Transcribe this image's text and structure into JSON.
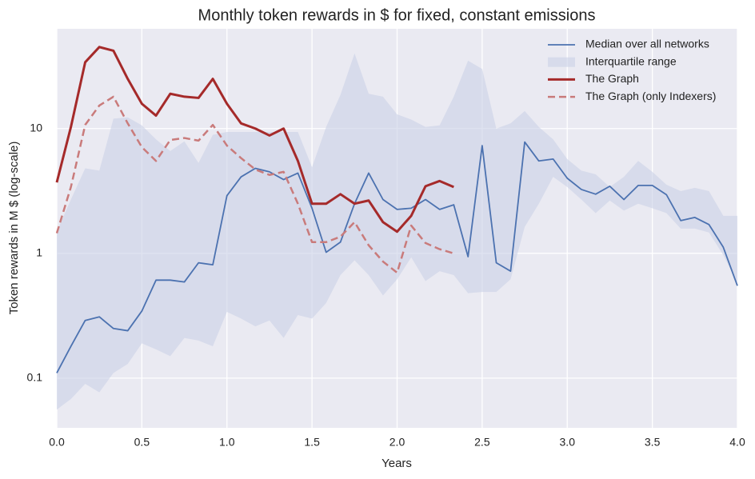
{
  "chart_data": {
    "type": "line",
    "title": "Monthly token rewards in $ for fixed, constant emissions",
    "xlabel": "Years",
    "ylabel": "Token rewards in M $ (log-scale)",
    "log_y": true,
    "grid": true,
    "legend": "upper right",
    "x": [
      0,
      0.083,
      0.167,
      0.25,
      0.333,
      0.417,
      0.5,
      0.583,
      0.667,
      0.75,
      0.833,
      0.917,
      1,
      1.083,
      1.167,
      1.25,
      1.333,
      1.417,
      1.5,
      1.583,
      1.667,
      1.75,
      1.833,
      1.917,
      2,
      2.083,
      2.167,
      2.25,
      2.333,
      2.417,
      2.5,
      2.583,
      2.667,
      2.75,
      2.833,
      2.917,
      3,
      3.083,
      3.167,
      3.25,
      3.333,
      3.417,
      3.5,
      3.583,
      3.667,
      3.75,
      3.833,
      3.917,
      4
    ],
    "series": [
      {
        "name": "Median over all networks",
        "color": "#4c72b0",
        "style": "solid",
        "values": [
          0.11,
          0.18,
          0.29,
          0.31,
          0.25,
          0.24,
          0.345,
          0.61,
          0.61,
          0.59,
          0.84,
          0.81,
          2.9,
          4.1,
          4.8,
          4.5,
          3.9,
          4.4,
          2.3,
          1.02,
          1.23,
          2.5,
          4.4,
          2.7,
          2.25,
          2.3,
          2.7,
          2.25,
          2.45,
          0.94,
          7.3,
          0.84,
          0.72,
          7.8,
          5.5,
          5.7,
          4.0,
          3.25,
          2.98,
          3.45,
          2.7,
          3.5,
          3.5,
          2.95,
          1.83,
          1.94,
          1.7,
          1.12,
          0.55
        ]
      },
      {
        "name": "Interquartile range",
        "color": "#c9d0e6",
        "style": "band",
        "lower": [
          0.056,
          0.068,
          0.09,
          0.077,
          0.11,
          0.13,
          0.19,
          0.17,
          0.15,
          0.21,
          0.2,
          0.18,
          0.34,
          0.3,
          0.26,
          0.29,
          0.21,
          0.32,
          0.3,
          0.4,
          0.67,
          0.88,
          0.67,
          0.46,
          0.62,
          0.93,
          0.6,
          0.72,
          0.67,
          0.48,
          0.49,
          0.49,
          0.62,
          1.63,
          2.5,
          4.1,
          3.4,
          2.7,
          2.1,
          2.65,
          2.2,
          2.5,
          2.3,
          2.1,
          1.58,
          1.58,
          1.47,
          0.97,
          0.58
        ],
        "upper": [
          1.5,
          2.7,
          4.8,
          4.6,
          12,
          12.3,
          10.6,
          8.2,
          6.6,
          7.9,
          5.3,
          8.9,
          9.4,
          9.4,
          9.4,
          9.4,
          9.4,
          9.4,
          4.9,
          10.3,
          18.6,
          40,
          19,
          18,
          13,
          11.8,
          10.3,
          10.6,
          18,
          35,
          30,
          10,
          11,
          13.8,
          10.3,
          8.2,
          5.7,
          4.6,
          4.3,
          3.4,
          4.1,
          5.5,
          4.5,
          3.55,
          3.15,
          3.35,
          3.15,
          2.0,
          2.0
        ]
      },
      {
        "name": "The Graph",
        "color": "#a52a2a",
        "style": "thick",
        "values": [
          3.7,
          10.3,
          34,
          45,
          42,
          25,
          15.8,
          12.7,
          19,
          18,
          17.6,
          25,
          15.8,
          11,
          10,
          8.8,
          10,
          5.5,
          2.5,
          2.5,
          2.98,
          2.5,
          2.65,
          1.78,
          1.49,
          2.0,
          3.45,
          3.8,
          3.4,
          null,
          null,
          null,
          null,
          null,
          null,
          null,
          null,
          null,
          null,
          null,
          null,
          null,
          null,
          null,
          null,
          null,
          null,
          null,
          null
        ]
      },
      {
        "name": "The Graph (only Indexers)",
        "color": "#c97b7b",
        "style": "dashed",
        "values": [
          1.45,
          3.4,
          10.7,
          15.3,
          18,
          11,
          7.1,
          5.5,
          8.1,
          8.4,
          8.0,
          10.7,
          7.3,
          5.8,
          4.7,
          4.25,
          4.5,
          2.5,
          1.23,
          1.23,
          1.36,
          1.78,
          1.16,
          0.86,
          0.7,
          1.67,
          1.21,
          1.08,
          1.0,
          null,
          null,
          null,
          null,
          null,
          null,
          null,
          null,
          null,
          null,
          null,
          null,
          null,
          null,
          null,
          null,
          null,
          null,
          null,
          null
        ]
      }
    ],
    "xlim": [
      0,
      4
    ],
    "ylim": [
      0.04,
      63
    ],
    "xticks": [
      {
        "value": 0,
        "label": "0.0"
      },
      0.5,
      {
        "value": 1,
        "label": "1.0"
      },
      1.5,
      {
        "value": 2,
        "label": "2.0"
      },
      2.5,
      {
        "value": 3,
        "label": "3.0"
      },
      3.5,
      {
        "value": 4,
        "label": "4.0"
      }
    ],
    "yticks": [
      0.1,
      1,
      10
    ]
  }
}
